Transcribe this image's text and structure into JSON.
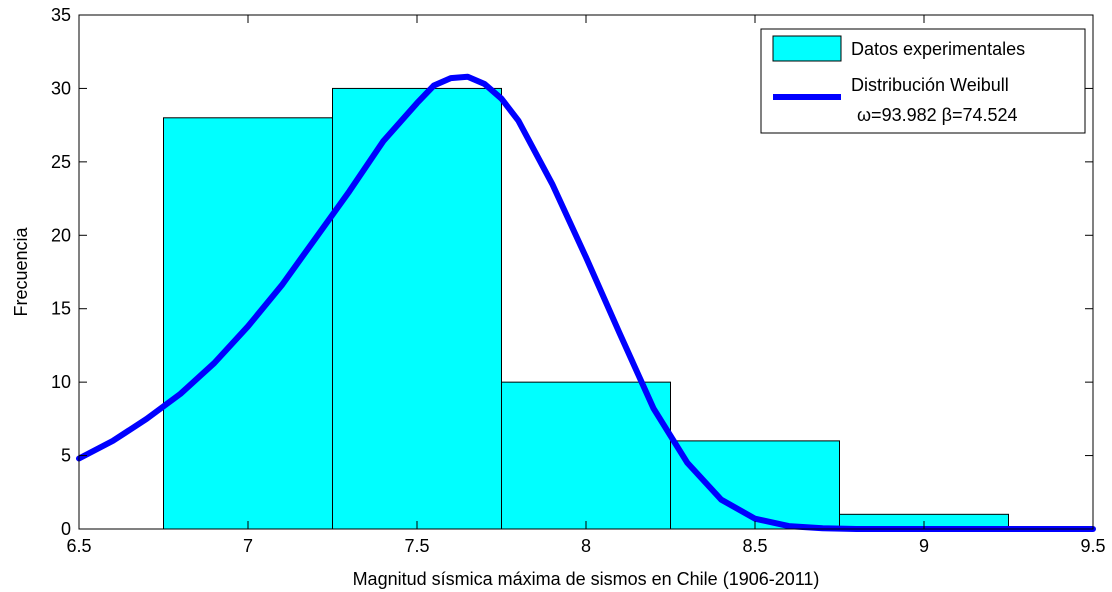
{
  "chart_data": {
    "type": "bar",
    "title": "",
    "xlabel": "Magnitud sísmica máxima de sismos en Chile (1906-2011)",
    "ylabel": "Frecuencia",
    "xlim": [
      6.5,
      9.5
    ],
    "ylim": [
      0,
      35
    ],
    "xticks": [
      "6.5",
      "7",
      "7.5",
      "8",
      "8.5",
      "9",
      "9.5"
    ],
    "yticks": [
      "0",
      "5",
      "10",
      "15",
      "20",
      "25",
      "30",
      "35"
    ],
    "grid": false,
    "legend_position": "top-right",
    "histogram": {
      "name": "Datos experimentales",
      "color": "#00ffff",
      "bins": [
        {
          "x0": 6.75,
          "x1": 7.25,
          "value": 28
        },
        {
          "x0": 7.25,
          "x1": 7.75,
          "value": 30
        },
        {
          "x0": 7.75,
          "x1": 8.25,
          "value": 10
        },
        {
          "x0": 8.25,
          "x1": 8.75,
          "value": 6
        },
        {
          "x0": 8.75,
          "x1": 9.25,
          "value": 1
        }
      ]
    },
    "curve": {
      "name": "Distribución Weibull",
      "params_label": "ω=93.982 β=74.524",
      "color": "#0000ff",
      "points": [
        [
          6.5,
          4.8
        ],
        [
          6.6,
          6.0
        ],
        [
          6.7,
          7.5
        ],
        [
          6.8,
          9.2
        ],
        [
          6.9,
          11.3
        ],
        [
          7.0,
          13.8
        ],
        [
          7.1,
          16.6
        ],
        [
          7.2,
          19.8
        ],
        [
          7.3,
          23.0
        ],
        [
          7.4,
          26.4
        ],
        [
          7.5,
          29.0
        ],
        [
          7.55,
          30.2
        ],
        [
          7.6,
          30.7
        ],
        [
          7.65,
          30.8
        ],
        [
          7.7,
          30.3
        ],
        [
          7.75,
          29.3
        ],
        [
          7.8,
          27.8
        ],
        [
          7.9,
          23.5
        ],
        [
          8.0,
          18.5
        ],
        [
          8.1,
          13.3
        ],
        [
          8.2,
          8.2
        ],
        [
          8.3,
          4.5
        ],
        [
          8.4,
          2.0
        ],
        [
          8.5,
          0.7
        ],
        [
          8.6,
          0.2
        ],
        [
          8.7,
          0.05
        ],
        [
          8.8,
          0.0
        ],
        [
          9.0,
          0.0
        ],
        [
          9.3,
          0.0
        ],
        [
          9.5,
          0.0
        ]
      ]
    }
  }
}
